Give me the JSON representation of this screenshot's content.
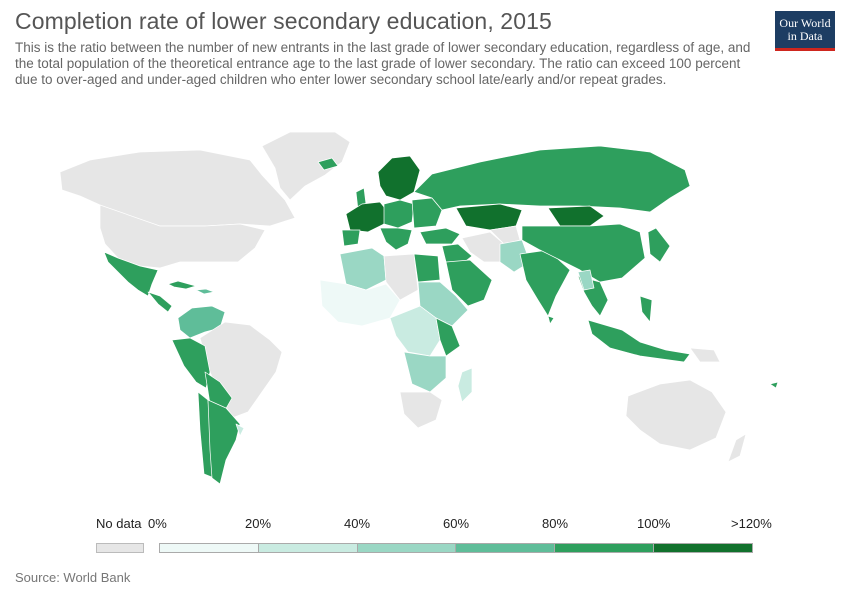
{
  "header": {
    "title": "Completion rate of lower secondary education, 2015",
    "subtitle": "This is the ratio between the number of new entrants in the last grade of lower secondary education, regardless of age, and the total population of the theoretical entrance age to the last grade of lower secondary. The ratio can exceed 100 percent due to over-aged and under-aged children who enter lower secondary school late/early and/or repeat grades."
  },
  "logo": {
    "line1": "Our World",
    "line2": "in Data"
  },
  "legend": {
    "nodata_label": "No data",
    "nodata_color": "#e6e6e6",
    "ticks": [
      "0%",
      "20%",
      "40%",
      "60%",
      "80%",
      "100%",
      ">120%"
    ],
    "bins": [
      {
        "range": "0-20%",
        "color": "#eef9f7"
      },
      {
        "range": "20-40%",
        "color": "#c9ebe1"
      },
      {
        "range": "40-60%",
        "color": "#9ad7c4"
      },
      {
        "range": "60-80%",
        "color": "#5fbd99"
      },
      {
        "range": "80-100%",
        "color": "#2e9f5d"
      },
      {
        "range": "100-120%",
        "color": "#11712d"
      }
    ]
  },
  "source": "Source: World Bank"
}
